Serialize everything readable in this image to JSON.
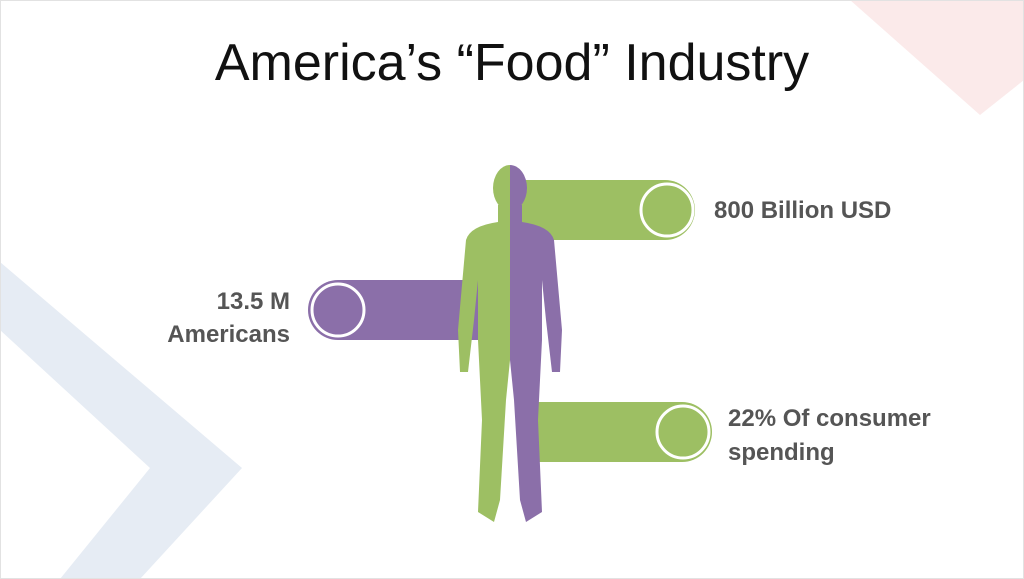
{
  "title": "America’s “Food” Industry",
  "callouts": [
    {
      "lines": [
        "800 Billion USD"
      ]
    },
    {
      "lines": [
        "13.5 M",
        "Americans"
      ]
    },
    {
      "lines": [
        "22% Of consumer",
        "spending"
      ]
    }
  ]
}
